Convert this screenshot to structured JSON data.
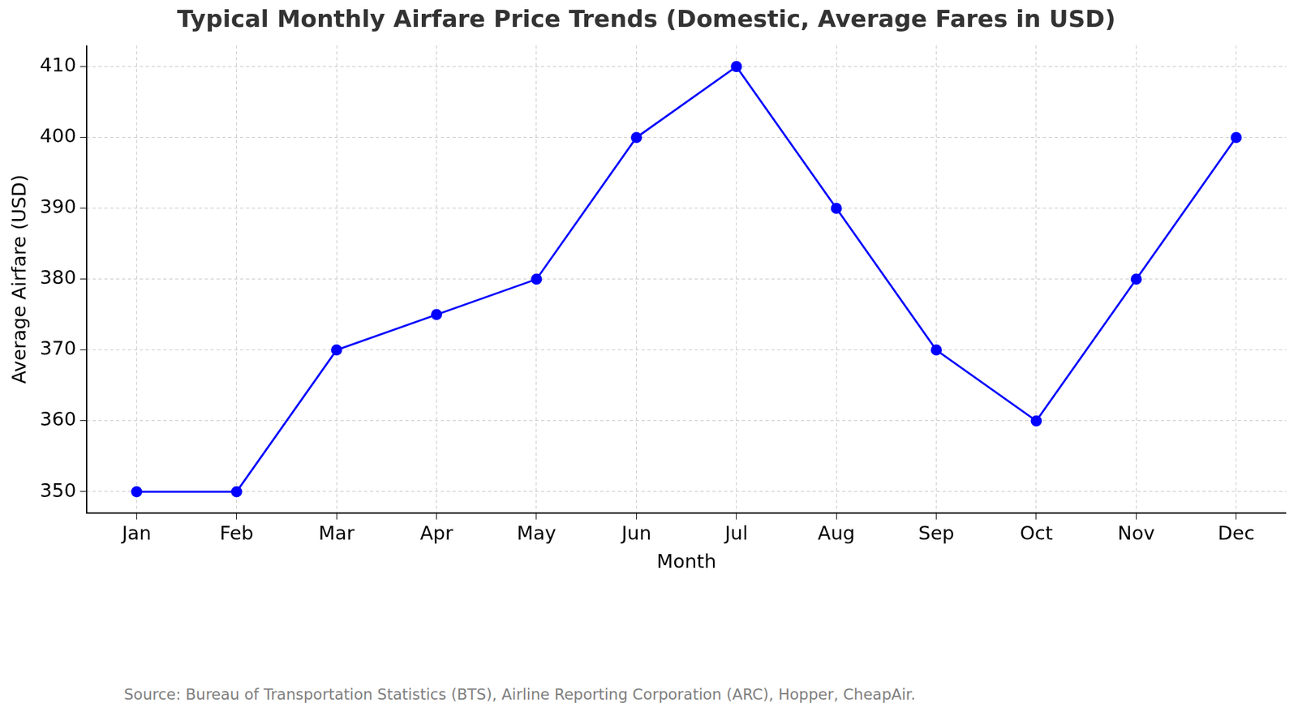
{
  "chart_data": {
    "type": "line",
    "title": "Typical Monthly Airfare Price Trends (Domestic, Average Fares in USD)",
    "x_label": "Month",
    "y_label": "Average Airfare (USD)",
    "source": "Source: Bureau of Transportation Statistics (BTS), Airline Reporting Corporation (ARC), Hopper, CheapAir.",
    "categories": [
      "Jan",
      "Feb",
      "Mar",
      "Apr",
      "May",
      "Jun",
      "Jul",
      "Aug",
      "Sep",
      "Oct",
      "Nov",
      "Dec"
    ],
    "values": [
      350,
      350,
      370,
      375,
      380,
      400,
      410,
      390,
      370,
      360,
      380,
      400
    ],
    "color": "#0000ff",
    "marker": "circle",
    "line_style": "solid",
    "ylim": [
      347,
      413
    ],
    "yticks": [
      350,
      360,
      370,
      380,
      390,
      400,
      410
    ],
    "grid": true
  }
}
